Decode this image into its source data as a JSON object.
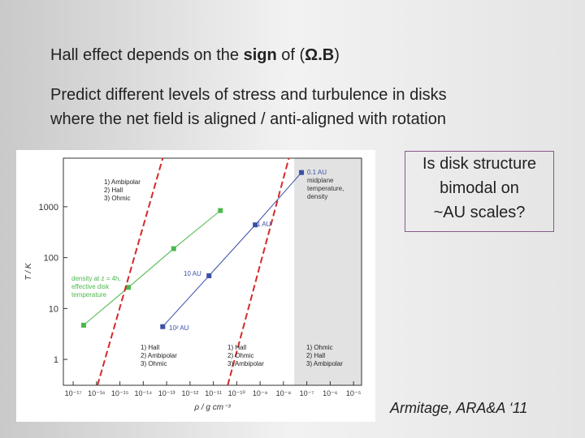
{
  "slide": {
    "heading": [
      {
        "text": "Hall effect depends on the "
      },
      {
        "text": "sign",
        "bold": true
      },
      {
        "text": " of ("
      },
      {
        "text": "Ω.B",
        "bold": true
      },
      {
        "text": ")"
      }
    ],
    "paragraph": [
      "Predict different levels of stress and turbulence in disks",
      "where the net field is aligned / anti-aligned with rotation"
    ],
    "question": [
      "Is disk structure",
      "bimodal on",
      "~AU scales?"
    ],
    "citation": "Armitage, ARA&A ‘11"
  },
  "chart_data": {
    "type": "scatter",
    "xlabel": "ρ / g cm⁻³",
    "ylabel": "T / K",
    "xlog": true,
    "ylog": true,
    "xlim": [
      3.8e-18,
      2.2e-05
    ],
    "ylim": [
      0.31,
      9000
    ],
    "xticks": [
      {
        "value": 1e-17,
        "label": "10⁻¹⁷"
      },
      {
        "value": 1e-16,
        "label": "10⁻¹⁶"
      },
      {
        "value": 1e-15,
        "label": "10⁻¹⁵"
      },
      {
        "value": 1e-14,
        "label": "10⁻¹⁴"
      },
      {
        "value": 1e-13,
        "label": "10⁻¹³"
      },
      {
        "value": 1e-12,
        "label": "10⁻¹²"
      },
      {
        "value": 1e-11,
        "label": "10⁻¹¹"
      },
      {
        "value": 1e-10,
        "label": "10⁻¹⁰"
      },
      {
        "value": 1e-09,
        "label": "10⁻⁹"
      },
      {
        "value": 1e-08,
        "label": "10⁻⁸"
      },
      {
        "value": 1e-07,
        "label": "10⁻⁷"
      },
      {
        "value": 1e-06,
        "label": "10⁻⁶"
      },
      {
        "value": 1e-05,
        "label": "10⁻⁵"
      }
    ],
    "yticks": [
      1,
      10,
      100,
      1000
    ],
    "shaded_region": [
      2.9e-08,
      2.2e-05
    ],
    "series": [
      {
        "color": "#4cb84c",
        "style": "markers-line",
        "x": [
          2.8e-17,
          2.3e-15,
          2e-13,
          2e-11
        ],
        "values": [
          4.7,
          26,
          150,
          840
        ]
      },
      {
        "color": "#3a4fa8",
        "style": "markers-line",
        "x": [
          6.8e-14,
          6.5e-12,
          6.2e-10,
          5.9e-08
        ],
        "values": [
          4.4,
          44,
          440,
          4700
        ]
      },
      {
        "color": "#d42a2a",
        "style": "dashed",
        "x": [
          1.1e-16,
          6.8e-14
        ],
        "values": [
          0.31,
          9000
        ]
      },
      {
        "color": "#d42a2a",
        "style": "dashed",
        "x": [
          4.1e-11,
          1.7e-08
        ],
        "values": [
          0.31,
          9000
        ]
      }
    ],
    "annotations": [
      {
        "lines": [
          "1) Ambipolar",
          "2) Hall",
          "3) Ohmic"
        ]
      },
      {
        "lines": [
          "0.1 AU",
          "midplane",
          "temperature,",
          "density"
        ]
      },
      {
        "lines": [
          "1 AU"
        ]
      },
      {
        "lines": [
          "10 AU"
        ]
      },
      {
        "lines": [
          "10² AU"
        ]
      },
      {
        "lines": [
          "density at z = 4h,",
          "effective disk",
          "temperature"
        ]
      },
      {
        "lines": [
          "1) Hall",
          "2) Ambipolar",
          "3) Ohmic"
        ]
      },
      {
        "lines": [
          "1) Hall",
          "2) Ohmic",
          "3) Ambipolar"
        ]
      },
      {
        "lines": [
          "1) Ohmic",
          "2) Hall",
          "3) Ambipolar"
        ]
      }
    ]
  }
}
